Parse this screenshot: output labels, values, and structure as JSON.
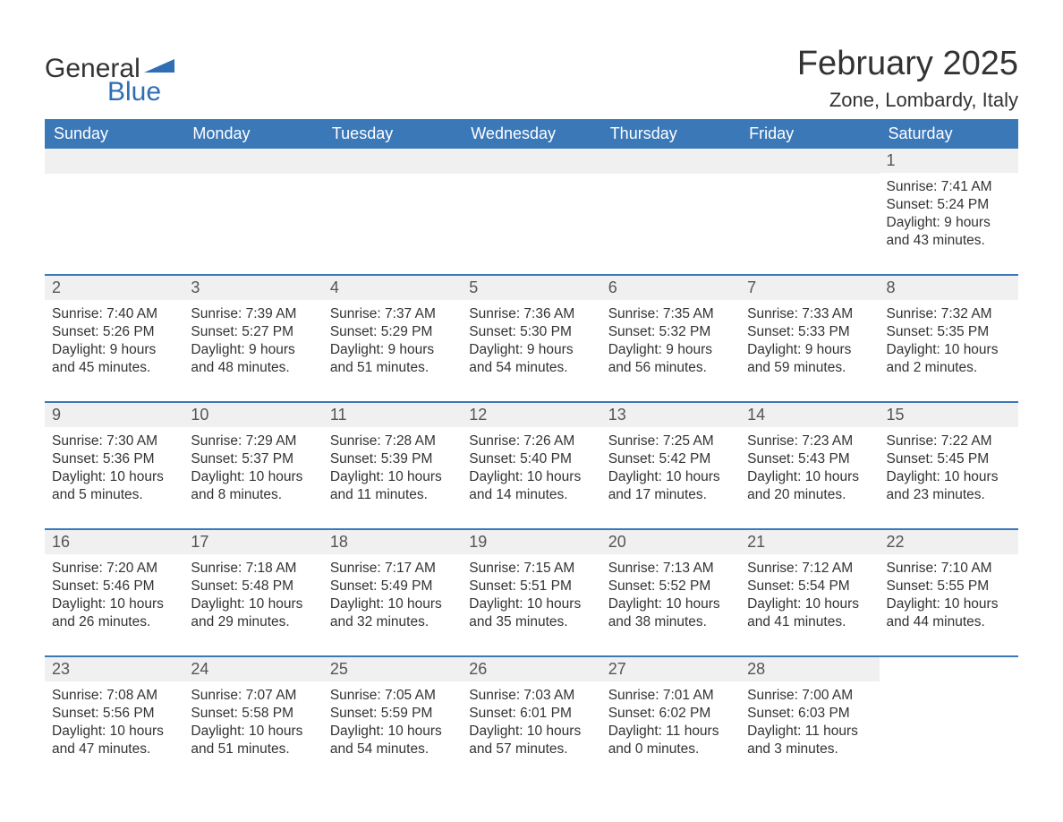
{
  "brand": {
    "general": "General",
    "blue": "Blue",
    "flag_color": "#2f6eb5"
  },
  "header": {
    "month": "February 2025",
    "location": "Zone, Lombardy, Italy"
  },
  "calendar": {
    "header_bg": "#3b78b8",
    "header_fg": "#ffffff",
    "divider_color": "#3b78b8",
    "daynum_bg": "#f0f0f0",
    "page_bg": "#ffffff",
    "text_color": "#333333",
    "columns": [
      "Sunday",
      "Monday",
      "Tuesday",
      "Wednesday",
      "Thursday",
      "Friday",
      "Saturday"
    ],
    "weeks": [
      [
        {
          "blank": true
        },
        {
          "blank": true
        },
        {
          "blank": true
        },
        {
          "blank": true
        },
        {
          "blank": true
        },
        {
          "blank": true
        },
        {
          "day": "1",
          "sunrise": "Sunrise: 7:41 AM",
          "sunset": "Sunset: 5:24 PM",
          "daylight1": "Daylight: 9 hours",
          "daylight2": "and 43 minutes."
        }
      ],
      [
        {
          "day": "2",
          "sunrise": "Sunrise: 7:40 AM",
          "sunset": "Sunset: 5:26 PM",
          "daylight1": "Daylight: 9 hours",
          "daylight2": "and 45 minutes."
        },
        {
          "day": "3",
          "sunrise": "Sunrise: 7:39 AM",
          "sunset": "Sunset: 5:27 PM",
          "daylight1": "Daylight: 9 hours",
          "daylight2": "and 48 minutes."
        },
        {
          "day": "4",
          "sunrise": "Sunrise: 7:37 AM",
          "sunset": "Sunset: 5:29 PM",
          "daylight1": "Daylight: 9 hours",
          "daylight2": "and 51 minutes."
        },
        {
          "day": "5",
          "sunrise": "Sunrise: 7:36 AM",
          "sunset": "Sunset: 5:30 PM",
          "daylight1": "Daylight: 9 hours",
          "daylight2": "and 54 minutes."
        },
        {
          "day": "6",
          "sunrise": "Sunrise: 7:35 AM",
          "sunset": "Sunset: 5:32 PM",
          "daylight1": "Daylight: 9 hours",
          "daylight2": "and 56 minutes."
        },
        {
          "day": "7",
          "sunrise": "Sunrise: 7:33 AM",
          "sunset": "Sunset: 5:33 PM",
          "daylight1": "Daylight: 9 hours",
          "daylight2": "and 59 minutes."
        },
        {
          "day": "8",
          "sunrise": "Sunrise: 7:32 AM",
          "sunset": "Sunset: 5:35 PM",
          "daylight1": "Daylight: 10 hours",
          "daylight2": "and 2 minutes."
        }
      ],
      [
        {
          "day": "9",
          "sunrise": "Sunrise: 7:30 AM",
          "sunset": "Sunset: 5:36 PM",
          "daylight1": "Daylight: 10 hours",
          "daylight2": "and 5 minutes."
        },
        {
          "day": "10",
          "sunrise": "Sunrise: 7:29 AM",
          "sunset": "Sunset: 5:37 PM",
          "daylight1": "Daylight: 10 hours",
          "daylight2": "and 8 minutes."
        },
        {
          "day": "11",
          "sunrise": "Sunrise: 7:28 AM",
          "sunset": "Sunset: 5:39 PM",
          "daylight1": "Daylight: 10 hours",
          "daylight2": "and 11 minutes."
        },
        {
          "day": "12",
          "sunrise": "Sunrise: 7:26 AM",
          "sunset": "Sunset: 5:40 PM",
          "daylight1": "Daylight: 10 hours",
          "daylight2": "and 14 minutes."
        },
        {
          "day": "13",
          "sunrise": "Sunrise: 7:25 AM",
          "sunset": "Sunset: 5:42 PM",
          "daylight1": "Daylight: 10 hours",
          "daylight2": "and 17 minutes."
        },
        {
          "day": "14",
          "sunrise": "Sunrise: 7:23 AM",
          "sunset": "Sunset: 5:43 PM",
          "daylight1": "Daylight: 10 hours",
          "daylight2": "and 20 minutes."
        },
        {
          "day": "15",
          "sunrise": "Sunrise: 7:22 AM",
          "sunset": "Sunset: 5:45 PM",
          "daylight1": "Daylight: 10 hours",
          "daylight2": "and 23 minutes."
        }
      ],
      [
        {
          "day": "16",
          "sunrise": "Sunrise: 7:20 AM",
          "sunset": "Sunset: 5:46 PM",
          "daylight1": "Daylight: 10 hours",
          "daylight2": "and 26 minutes."
        },
        {
          "day": "17",
          "sunrise": "Sunrise: 7:18 AM",
          "sunset": "Sunset: 5:48 PM",
          "daylight1": "Daylight: 10 hours",
          "daylight2": "and 29 minutes."
        },
        {
          "day": "18",
          "sunrise": "Sunrise: 7:17 AM",
          "sunset": "Sunset: 5:49 PM",
          "daylight1": "Daylight: 10 hours",
          "daylight2": "and 32 minutes."
        },
        {
          "day": "19",
          "sunrise": "Sunrise: 7:15 AM",
          "sunset": "Sunset: 5:51 PM",
          "daylight1": "Daylight: 10 hours",
          "daylight2": "and 35 minutes."
        },
        {
          "day": "20",
          "sunrise": "Sunrise: 7:13 AM",
          "sunset": "Sunset: 5:52 PM",
          "daylight1": "Daylight: 10 hours",
          "daylight2": "and 38 minutes."
        },
        {
          "day": "21",
          "sunrise": "Sunrise: 7:12 AM",
          "sunset": "Sunset: 5:54 PM",
          "daylight1": "Daylight: 10 hours",
          "daylight2": "and 41 minutes."
        },
        {
          "day": "22",
          "sunrise": "Sunrise: 7:10 AM",
          "sunset": "Sunset: 5:55 PM",
          "daylight1": "Daylight: 10 hours",
          "daylight2": "and 44 minutes."
        }
      ],
      [
        {
          "day": "23",
          "sunrise": "Sunrise: 7:08 AM",
          "sunset": "Sunset: 5:56 PM",
          "daylight1": "Daylight: 10 hours",
          "daylight2": "and 47 minutes."
        },
        {
          "day": "24",
          "sunrise": "Sunrise: 7:07 AM",
          "sunset": "Sunset: 5:58 PM",
          "daylight1": "Daylight: 10 hours",
          "daylight2": "and 51 minutes."
        },
        {
          "day": "25",
          "sunrise": "Sunrise: 7:05 AM",
          "sunset": "Sunset: 5:59 PM",
          "daylight1": "Daylight: 10 hours",
          "daylight2": "and 54 minutes."
        },
        {
          "day": "26",
          "sunrise": "Sunrise: 7:03 AM",
          "sunset": "Sunset: 6:01 PM",
          "daylight1": "Daylight: 10 hours",
          "daylight2": "and 57 minutes."
        },
        {
          "day": "27",
          "sunrise": "Sunrise: 7:01 AM",
          "sunset": "Sunset: 6:02 PM",
          "daylight1": "Daylight: 11 hours",
          "daylight2": "and 0 minutes."
        },
        {
          "day": "28",
          "sunrise": "Sunrise: 7:00 AM",
          "sunset": "Sunset: 6:03 PM",
          "daylight1": "Daylight: 11 hours",
          "daylight2": "and 3 minutes."
        },
        {
          "blank": true,
          "no_bg": true
        }
      ]
    ]
  }
}
